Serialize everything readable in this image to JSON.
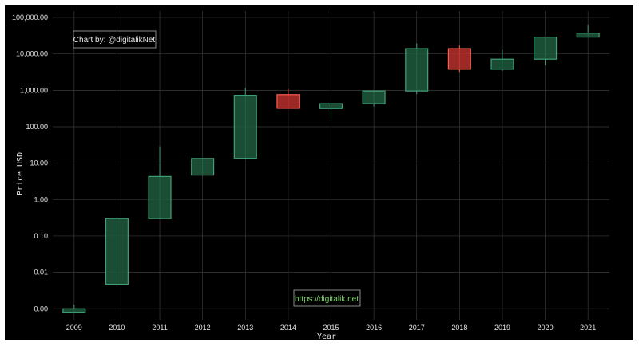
{
  "chart_data": {
    "type": "candlestick",
    "title": "",
    "xlabel": "Year",
    "ylabel": "Price USD",
    "y_scale": "log",
    "ylim": [
      0.0005,
      150000
    ],
    "y_ticks": [
      {
        "value": 0.001,
        "label": "0.00"
      },
      {
        "value": 0.01,
        "label": "0.01"
      },
      {
        "value": 0.1,
        "label": "0.10"
      },
      {
        "value": 1,
        "label": "1.00"
      },
      {
        "value": 10,
        "label": "10.00"
      },
      {
        "value": 100,
        "label": "100.00"
      },
      {
        "value": 1000,
        "label": "1,000.00"
      },
      {
        "value": 10000,
        "label": "10,000.00"
      },
      {
        "value": 100000,
        "label": "100,000.00"
      }
    ],
    "grid": true,
    "candles": [
      {
        "year": "2009",
        "open": 0.0008,
        "close": 0.001,
        "low": 0.0008,
        "high": 0.0013
      },
      {
        "year": "2010",
        "open": 0.0047,
        "close": 0.3,
        "low": 0.0047,
        "high": 0.3
      },
      {
        "year": "2011",
        "open": 0.3,
        "close": 4.3,
        "low": 0.3,
        "high": 29
      },
      {
        "year": "2012",
        "open": 4.7,
        "close": 13.4,
        "low": 4.5,
        "high": 13.5
      },
      {
        "year": "2013",
        "open": 13.5,
        "close": 730,
        "low": 13.3,
        "high": 1150
      },
      {
        "year": "2014",
        "open": 760,
        "close": 320,
        "low": 310,
        "high": 1100
      },
      {
        "year": "2015",
        "open": 315,
        "close": 430,
        "low": 165,
        "high": 460
      },
      {
        "year": "2016",
        "open": 430,
        "close": 960,
        "low": 360,
        "high": 980
      },
      {
        "year": "2017",
        "open": 960,
        "close": 14000,
        "low": 780,
        "high": 19500
      },
      {
        "year": "2018",
        "open": 14000,
        "close": 3800,
        "low": 3200,
        "high": 17000
      },
      {
        "year": "2019",
        "open": 3800,
        "close": 7200,
        "low": 3400,
        "high": 13000
      },
      {
        "year": "2020",
        "open": 7200,
        "close": 29000,
        "low": 4900,
        "high": 29000
      },
      {
        "year": "2021",
        "open": 29000,
        "close": 37000,
        "low": 29000,
        "high": 64000
      }
    ],
    "colors": {
      "background": "#000000",
      "grid": "#3a3a3a",
      "up_fill": "#1e5a3c",
      "up_line": "#3fa07a",
      "down_fill": "#b8302e",
      "down_line": "#ff5a4f"
    }
  },
  "annotations": {
    "credit": "Chart by: @digitalikNet",
    "link": "https://digitalik.net"
  }
}
